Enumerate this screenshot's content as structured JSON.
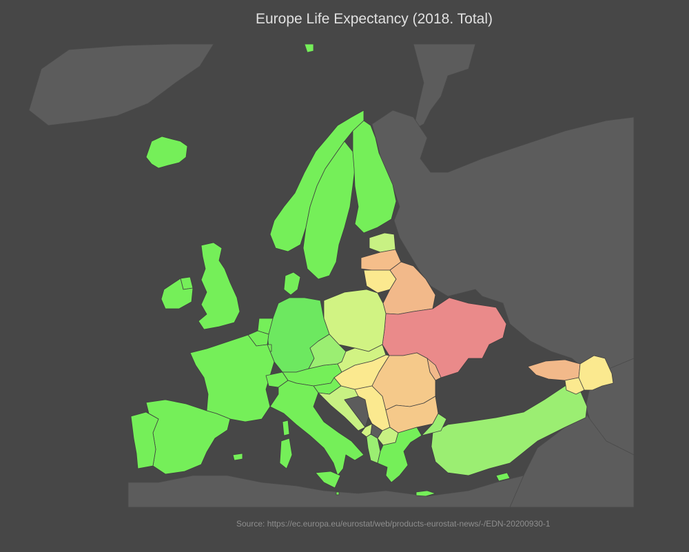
{
  "title": "Europe Life Expectancy (2018. Total)",
  "source": "Source: https://ec.europa.eu/eurostat/web/products-eurostat-news/-/EDN-20200930-1",
  "map": {
    "background": "#474747",
    "land_no_data": "#5c5c5c",
    "sea": "#474747",
    "scale": [
      "#e98585",
      "#f2b98a",
      "#f5d28c",
      "#fbeb8f",
      "#d1f383",
      "#9bee72",
      "#6de860",
      "#75ef59"
    ],
    "countries": [
      {
        "id": "iceland",
        "color": "#75ef59"
      },
      {
        "id": "norway",
        "color": "#75ef59"
      },
      {
        "id": "sweden",
        "color": "#75ef59"
      },
      {
        "id": "finland",
        "color": "#75ef59"
      },
      {
        "id": "estonia",
        "color": "#c8f183"
      },
      {
        "id": "latvia",
        "color": "#f5be8a"
      },
      {
        "id": "lithuania",
        "color": "#fbe98f"
      },
      {
        "id": "belarus",
        "color": "#f2b98a"
      },
      {
        "id": "ukraine",
        "color": "#ea8a8a"
      },
      {
        "id": "moldova",
        "color": "#f2b98a"
      },
      {
        "id": "russia",
        "color": "#5c5c5c"
      },
      {
        "id": "poland",
        "color": "#d1f383"
      },
      {
        "id": "germany",
        "color": "#6de860"
      },
      {
        "id": "denmark",
        "color": "#75ef59"
      },
      {
        "id": "netherlands",
        "color": "#75ef59"
      },
      {
        "id": "belgium",
        "color": "#75ef59"
      },
      {
        "id": "luxembourg",
        "color": "#75ef59"
      },
      {
        "id": "france",
        "color": "#75ef59"
      },
      {
        "id": "switzerland",
        "color": "#75ef59"
      },
      {
        "id": "austria",
        "color": "#75ef59"
      },
      {
        "id": "czechia",
        "color": "#9bee72"
      },
      {
        "id": "slovakia",
        "color": "#d1f383"
      },
      {
        "id": "hungary",
        "color": "#fbe98f"
      },
      {
        "id": "slovenia",
        "color": "#75ef59"
      },
      {
        "id": "croatia",
        "color": "#c8f183"
      },
      {
        "id": "bosnia",
        "color": "#5c5c5c"
      },
      {
        "id": "serbia",
        "color": "#fbe98f"
      },
      {
        "id": "montenegro",
        "color": "#d1f383"
      },
      {
        "id": "albania",
        "color": "#9bee72"
      },
      {
        "id": "north-macedonia",
        "color": "#c8f183"
      },
      {
        "id": "kosovo",
        "color": "#5c5c5c"
      },
      {
        "id": "romania",
        "color": "#f5c98a"
      },
      {
        "id": "bulgaria",
        "color": "#f5c98a"
      },
      {
        "id": "greece",
        "color": "#75ef59"
      },
      {
        "id": "italy",
        "color": "#75ef59"
      },
      {
        "id": "spain",
        "color": "#75ef59"
      },
      {
        "id": "portugal",
        "color": "#75ef59"
      },
      {
        "id": "united-kingdom",
        "color": "#75ef59"
      },
      {
        "id": "ireland",
        "color": "#75ef59"
      },
      {
        "id": "turkey",
        "color": "#9bee72"
      },
      {
        "id": "georgia",
        "color": "#f2b98a"
      },
      {
        "id": "armenia",
        "color": "#fbe98f"
      },
      {
        "id": "azerbaijan",
        "color": "#fbe98f"
      },
      {
        "id": "cyprus",
        "color": "#75ef59"
      },
      {
        "id": "malta",
        "color": "#75ef59"
      }
    ]
  }
}
